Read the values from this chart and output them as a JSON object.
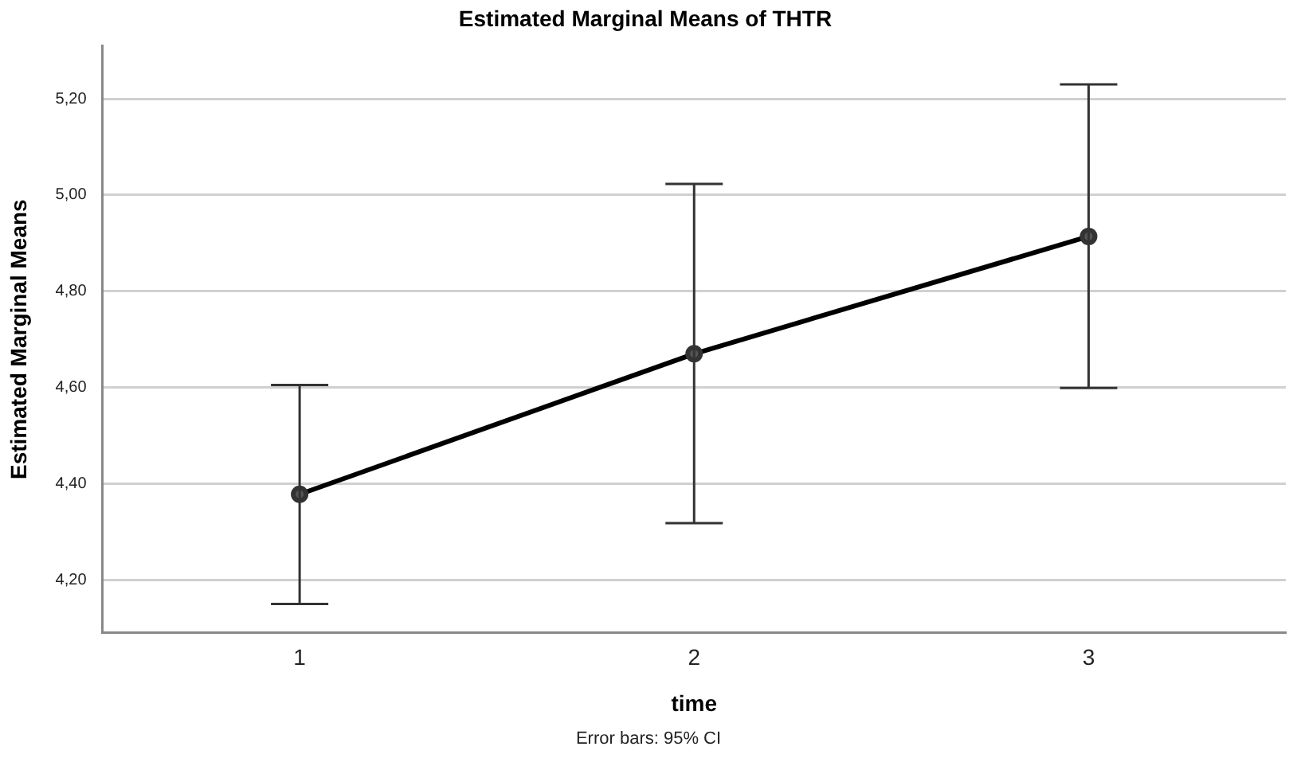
{
  "chart_data": {
    "type": "line",
    "title": "Estimated Marginal Means of THTR",
    "xlabel": "time",
    "ylabel": "Estimated Marginal Means",
    "annotations": [
      "Error bars: 95% CI"
    ],
    "categories": [
      "1",
      "2",
      "3"
    ],
    "series": [
      {
        "color": "#000000",
        "values": [
          4.378,
          4.67,
          4.914
        ],
        "errors": [
          [
            4.15,
            4.605
          ],
          [
            4.318,
            5.023
          ],
          [
            4.599,
            5.23
          ]
        ]
      }
    ],
    "ylim": [
      4.09,
      5.31
    ],
    "yticks": [
      {
        "value": 4.2,
        "label": "4,20"
      },
      {
        "value": 4.4,
        "label": "4,40"
      },
      {
        "value": 4.6,
        "label": "4,60"
      },
      {
        "value": 4.8,
        "label": "4,80"
      },
      {
        "value": 5.0,
        "label": "5,00"
      },
      {
        "value": 5.2,
        "label": "5,20"
      }
    ],
    "grid": "y",
    "legend": false,
    "marker": "circle",
    "line_style": "solid"
  }
}
